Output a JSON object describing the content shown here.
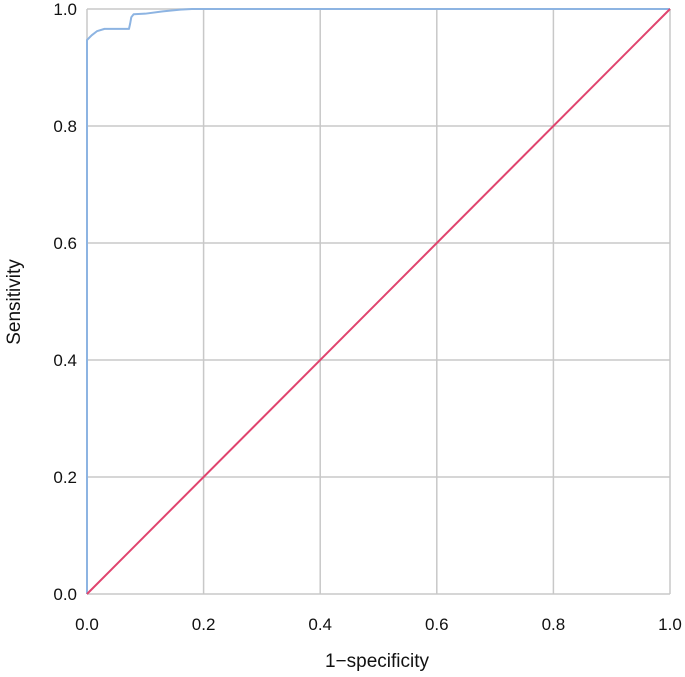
{
  "chart_data": {
    "type": "line",
    "xlabel": "1−specificity",
    "ylabel": "Sensitivity",
    "xlim": [
      0.0,
      1.0
    ],
    "ylim": [
      0.0,
      1.0
    ],
    "x_ticks": [
      "0.0",
      "0.2",
      "0.4",
      "0.6",
      "0.8",
      "1.0"
    ],
    "y_ticks": [
      "0.0",
      "0.2",
      "0.4",
      "0.6",
      "0.8",
      "1.0"
    ],
    "grid": true,
    "legend": "none",
    "series": [
      {
        "color": "#8db4e2",
        "points": [
          [
            0.0,
            0.0
          ],
          [
            0.0,
            0.947
          ],
          [
            0.008,
            0.955
          ],
          [
            0.017,
            0.962
          ],
          [
            0.03,
            0.966
          ],
          [
            0.04,
            0.966
          ],
          [
            0.065,
            0.966
          ],
          [
            0.072,
            0.966
          ],
          [
            0.074,
            0.975
          ],
          [
            0.076,
            0.986
          ],
          [
            0.08,
            0.991
          ],
          [
            0.1,
            0.992
          ],
          [
            0.13,
            0.996
          ],
          [
            0.16,
            0.999
          ],
          [
            0.18,
            1.0
          ],
          [
            0.5,
            1.0
          ],
          [
            1.0,
            1.0
          ]
        ]
      },
      {
        "color": "#e0446e",
        "points": [
          [
            0.0,
            0.0
          ],
          [
            1.0,
            1.0
          ]
        ]
      }
    ]
  }
}
